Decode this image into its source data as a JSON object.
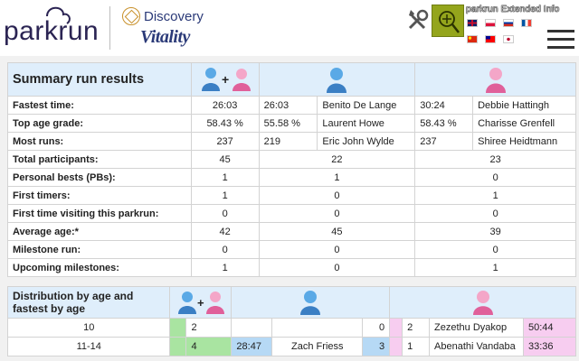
{
  "header": {
    "logo_text": "parkrun",
    "sponsor_word": "Discovery",
    "sponsor_brand": "Vitality",
    "extension_title": "parkrun Extended Info",
    "flags": [
      "uk-flag",
      "poland-flag",
      "russia-flag",
      "france-flag",
      "china-flag",
      "taiwan-flag",
      "japan-flag"
    ],
    "plus_sign": "+"
  },
  "summary": {
    "title": "Summary run results",
    "rows": [
      {
        "label": "Fastest time:",
        "all": "26:03",
        "m_val": "26:03",
        "m_name": "Benito De Lange",
        "f_val": "30:24",
        "f_name": "Debbie Hattingh"
      },
      {
        "label": "Top age grade:",
        "all": "58.43 %",
        "m_val": "55.58 %",
        "m_name": "Laurent Howe",
        "f_val": "58.43 %",
        "f_name": "Charisse Grenfell"
      },
      {
        "label": "Most runs:",
        "all": "237",
        "m_val": "219",
        "m_name": "Eric John Wylde",
        "f_val": "237",
        "f_name": "Shiree Heidtmann"
      },
      {
        "label": "Total participants:",
        "all": "45",
        "m": "22",
        "f": "23"
      },
      {
        "label": "Personal bests (PBs):",
        "all": "1",
        "m": "1",
        "f": "0"
      },
      {
        "label": "First timers:",
        "all": "1",
        "m": "0",
        "f": "1"
      },
      {
        "label": "First time visiting this parkrun:",
        "all": "0",
        "m": "0",
        "f": "0"
      },
      {
        "label": "Average age:*",
        "all": "42",
        "m": "45",
        "f": "39"
      },
      {
        "label": "Milestone run:",
        "all": "0",
        "m": "0",
        "f": "0"
      },
      {
        "label": "Upcoming milestones:",
        "all": "1",
        "m": "0",
        "f": "1"
      }
    ]
  },
  "distribution": {
    "title": "Distribution by age and fastest by age",
    "rows": [
      {
        "age": "10",
        "all": "2",
        "m_time": "",
        "m_name": "",
        "m_count": "0",
        "f_count": "2",
        "f_name": "Zezethu Dyakop",
        "f_time": "50:44"
      },
      {
        "age": "11-14",
        "all": "4",
        "m_time": "28:47",
        "m_name": "Zach Friess",
        "m_count": "3",
        "f_count": "1",
        "f_name": "Abenathi Vandaba",
        "f_time": "33:36"
      }
    ]
  },
  "colors": {
    "header_band": "#dfeefb",
    "all_bar": "#a9e4a1",
    "male_bar": "#b6d9f5",
    "female_bar": "#f7cdf0",
    "extension_button": "#94a51c"
  }
}
